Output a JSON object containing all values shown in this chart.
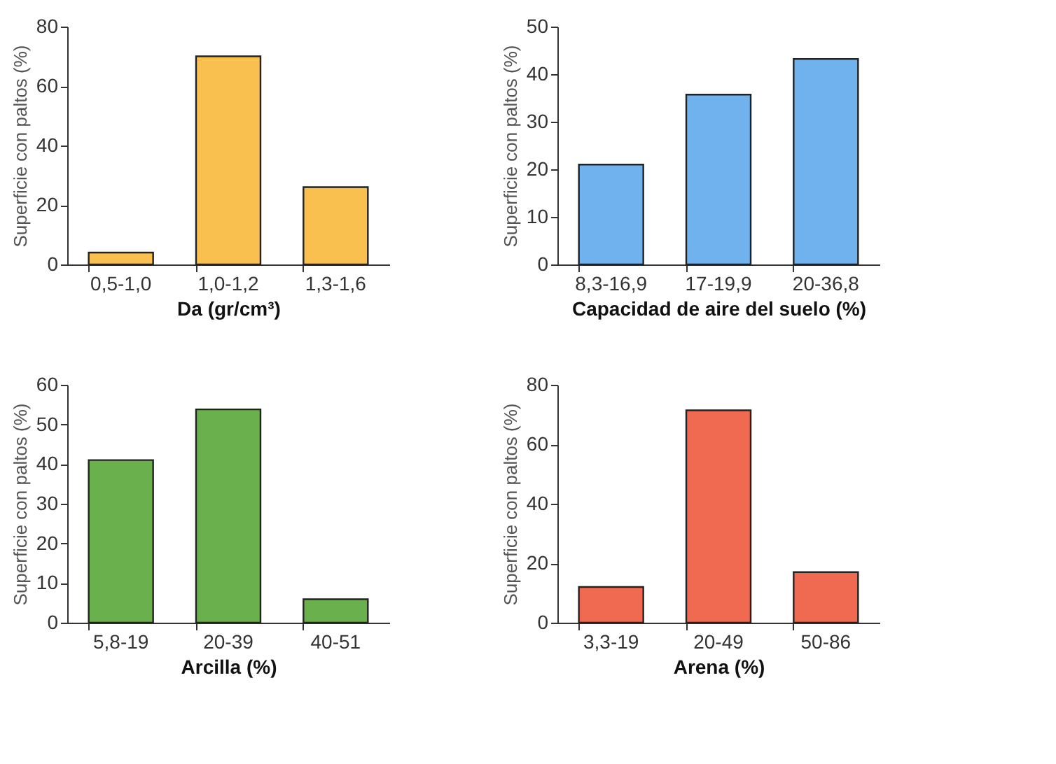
{
  "chart_data": [
    {
      "type": "bar",
      "xlabel": "Da (gr/cm³)",
      "ylabel": "Superficie con paltos (%)",
      "categories": [
        "0,5-1,0",
        "1,0-1,2",
        "1,3-1,6"
      ],
      "values": [
        4,
        70,
        26
      ],
      "color": "#f9c04f",
      "ylim": [
        0,
        80
      ],
      "yticks": [
        0,
        20,
        40,
        60,
        80
      ],
      "grid": false
    },
    {
      "type": "bar",
      "xlabel": "Capacidad de aire del suelo (%)",
      "ylabel": "Superficie con paltos (%)",
      "categories": [
        "8,3-16,9",
        "17-19,9",
        "20-36,8"
      ],
      "values": [
        21,
        35.7,
        43.2
      ],
      "color": "#70b2ee",
      "ylim": [
        0,
        50
      ],
      "yticks": [
        0,
        10,
        20,
        30,
        40,
        50
      ],
      "grid": false
    },
    {
      "type": "bar",
      "xlabel": "Arcilla (%)",
      "ylabel": "Superficie con paltos (%)",
      "categories": [
        "5,8-19",
        "20-39",
        "40-51"
      ],
      "values": [
        41,
        53.8,
        5.9
      ],
      "color": "#6ab04c",
      "ylim": [
        0,
        60
      ],
      "yticks": [
        0,
        10,
        20,
        30,
        40,
        50,
        60
      ],
      "grid": false
    },
    {
      "type": "bar",
      "xlabel": "Arena (%)",
      "ylabel": "Superficie con paltos (%)",
      "categories": [
        "3,3-19",
        "20-49",
        "50-86"
      ],
      "values": [
        12,
        71.4,
        17
      ],
      "color": "#ef6a50",
      "ylim": [
        0,
        80
      ],
      "yticks": [
        0,
        20,
        40,
        60,
        80
      ],
      "grid": false
    }
  ]
}
